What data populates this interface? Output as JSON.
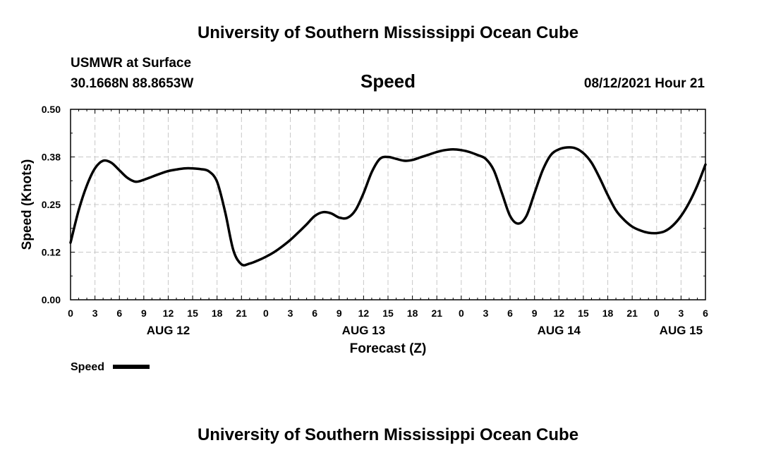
{
  "header": {
    "title": "University of Southern Mississippi Ocean Cube",
    "station": "USMWR at Surface",
    "coords": "30.1668N  88.8653W",
    "panel_title": "Speed",
    "timestamp": "08/12/2021 Hour 21"
  },
  "footer": {
    "title": "University of Southern Mississippi Ocean Cube"
  },
  "legend": {
    "label": "Speed",
    "color": "#000000"
  },
  "chart_data": {
    "type": "line",
    "xlabel": "Forecast (Z)",
    "ylabel": "Speed (Knots)",
    "ylim": [
      0,
      0.5
    ],
    "xlim_hours": [
      0,
      78
    ],
    "grid": true,
    "yticks": [
      {
        "value": 0.0,
        "label": "0.00"
      },
      {
        "value": 0.125,
        "label": "0.12"
      },
      {
        "value": 0.25,
        "label": "0.25"
      },
      {
        "value": 0.375,
        "label": "0.38"
      },
      {
        "value": 0.5,
        "label": "0.50"
      }
    ],
    "xticks": [
      {
        "hour": 0,
        "label": "0"
      },
      {
        "hour": 3,
        "label": "3"
      },
      {
        "hour": 6,
        "label": "6"
      },
      {
        "hour": 9,
        "label": "9"
      },
      {
        "hour": 12,
        "label": "12"
      },
      {
        "hour": 15,
        "label": "15"
      },
      {
        "hour": 18,
        "label": "18"
      },
      {
        "hour": 21,
        "label": "21"
      },
      {
        "hour": 24,
        "label": "0"
      },
      {
        "hour": 27,
        "label": "3"
      },
      {
        "hour": 30,
        "label": "6"
      },
      {
        "hour": 33,
        "label": "9"
      },
      {
        "hour": 36,
        "label": "12"
      },
      {
        "hour": 39,
        "label": "15"
      },
      {
        "hour": 42,
        "label": "18"
      },
      {
        "hour": 45,
        "label": "21"
      },
      {
        "hour": 48,
        "label": "0"
      },
      {
        "hour": 51,
        "label": "3"
      },
      {
        "hour": 54,
        "label": "6"
      },
      {
        "hour": 57,
        "label": "9"
      },
      {
        "hour": 60,
        "label": "12"
      },
      {
        "hour": 63,
        "label": "15"
      },
      {
        "hour": 66,
        "label": "18"
      },
      {
        "hour": 69,
        "label": "21"
      },
      {
        "hour": 72,
        "label": "0"
      },
      {
        "hour": 75,
        "label": "3"
      },
      {
        "hour": 78,
        "label": "6"
      }
    ],
    "day_labels": [
      {
        "hour": 12,
        "label": "AUG 12"
      },
      {
        "hour": 36,
        "label": "AUG 13"
      },
      {
        "hour": 60,
        "label": "AUG 14"
      },
      {
        "hour": 75,
        "label": "AUG 15"
      }
    ],
    "series": [
      {
        "name": "Speed",
        "color": "#000000",
        "x": [
          0,
          1,
          2,
          3,
          4,
          5,
          6,
          7,
          8,
          9,
          10,
          11,
          12,
          13,
          14,
          15,
          16,
          17,
          18,
          19,
          20,
          21,
          22,
          23,
          24,
          25,
          26,
          27,
          28,
          29,
          30,
          31,
          32,
          33,
          34,
          35,
          36,
          37,
          38,
          39,
          40,
          41,
          42,
          43,
          44,
          45,
          46,
          47,
          48,
          49,
          50,
          51,
          52,
          53,
          54,
          55,
          56,
          57,
          58,
          59,
          60,
          61,
          62,
          63,
          64,
          65,
          66,
          67,
          68,
          69,
          70,
          71,
          72,
          73,
          74,
          75,
          76,
          77,
          78
        ],
        "y": [
          0.15,
          0.235,
          0.3,
          0.345,
          0.365,
          0.36,
          0.34,
          0.32,
          0.31,
          0.315,
          0.323,
          0.331,
          0.338,
          0.342,
          0.345,
          0.345,
          0.343,
          0.337,
          0.31,
          0.23,
          0.13,
          0.093,
          0.095,
          0.103,
          0.113,
          0.125,
          0.14,
          0.157,
          0.177,
          0.198,
          0.22,
          0.23,
          0.227,
          0.216,
          0.215,
          0.235,
          0.28,
          0.335,
          0.37,
          0.375,
          0.37,
          0.365,
          0.367,
          0.374,
          0.381,
          0.388,
          0.393,
          0.395,
          0.393,
          0.388,
          0.38,
          0.37,
          0.34,
          0.28,
          0.22,
          0.2,
          0.22,
          0.28,
          0.34,
          0.38,
          0.395,
          0.4,
          0.398,
          0.385,
          0.36,
          0.32,
          0.275,
          0.235,
          0.21,
          0.192,
          0.182,
          0.176,
          0.175,
          0.18,
          0.195,
          0.22,
          0.255,
          0.3,
          0.355
        ]
      }
    ]
  }
}
